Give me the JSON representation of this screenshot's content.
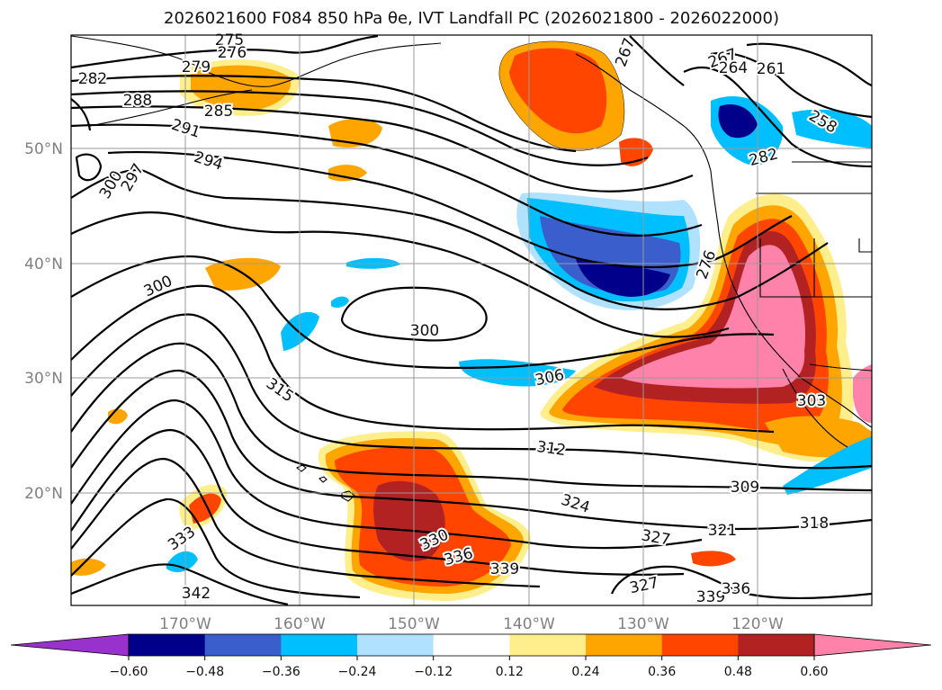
{
  "title": "2026021600 F084 850 hPa θe, IVT Landfall PC (2026021800 - 2026022000)",
  "lat_ticks": [
    "50°N",
    "40°N",
    "30°N",
    "20°N"
  ],
  "lon_ticks": [
    "170°W",
    "160°W",
    "150°W",
    "140°W",
    "130°W",
    "120°W"
  ],
  "colorbar": {
    "tick_labels": [
      "−0.60",
      "−0.48",
      "−0.36",
      "−0.24",
      "−0.12",
      "0.12",
      "0.24",
      "0.36",
      "0.48",
      "0.60"
    ],
    "colors": [
      "#9932cc",
      "#00008b",
      "#3a5fcd",
      "#00bfff",
      "#b0e2ff",
      "#ffffff",
      "#ffee8c",
      "#ffa500",
      "#ff4500",
      "#b22222",
      "#ff82ab"
    ]
  },
  "map": {
    "extent": {
      "lon": [
        -180,
        -110
      ],
      "lat": [
        10,
        60
      ]
    },
    "projection": "Plate Carrée",
    "shading_variable": "IVT Landfall PC",
    "contour_variable": "850 hPa θe"
  },
  "contour_labels": [
    "275",
    "276",
    "279",
    "282",
    "288",
    "291",
    "285",
    "294",
    "297",
    "300",
    "300",
    "300",
    "306",
    "315",
    "312",
    "303",
    "309",
    "318",
    "321",
    "324",
    "327",
    "330",
    "336",
    "339",
    "333",
    "342",
    "327",
    "339",
    "336",
    "267",
    "267",
    "264",
    "261",
    "258",
    "282",
    "276"
  ]
}
